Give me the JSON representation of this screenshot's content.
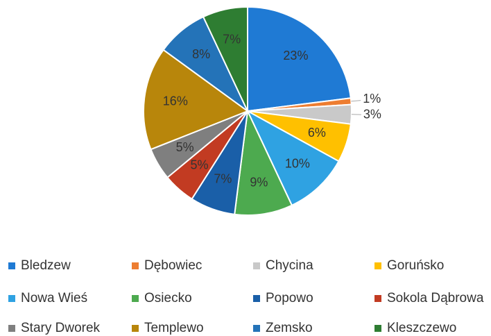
{
  "chart_data": {
    "type": "pie",
    "categories": [
      "Bledzew",
      "Dębowiec",
      "Chycina",
      "Goruńsko",
      "Nowa Wieś",
      "Osiecko",
      "Popowo",
      "Sokola Dąbrowa",
      "Stary Dworek",
      "Templewo",
      "Zemsko",
      "Kleszczewo"
    ],
    "values": [
      23,
      1,
      3,
      6,
      10,
      9,
      7,
      5,
      5,
      16,
      8,
      7
    ],
    "value_labels": [
      "23%",
      "1%",
      "3%",
      "6%",
      "10%",
      "9%",
      "7%",
      "5%",
      "5%",
      "16%",
      "8%",
      "7%"
    ],
    "colors": [
      "#1f7ad4",
      "#ed7d31",
      "#c9c9c9",
      "#ffc000",
      "#2fa2e2",
      "#4daa4f",
      "#1a5fa8",
      "#c23b22",
      "#7f7f7f",
      "#b8860b",
      "#2473b8",
      "#2e7d32"
    ],
    "legend": "bottom"
  }
}
